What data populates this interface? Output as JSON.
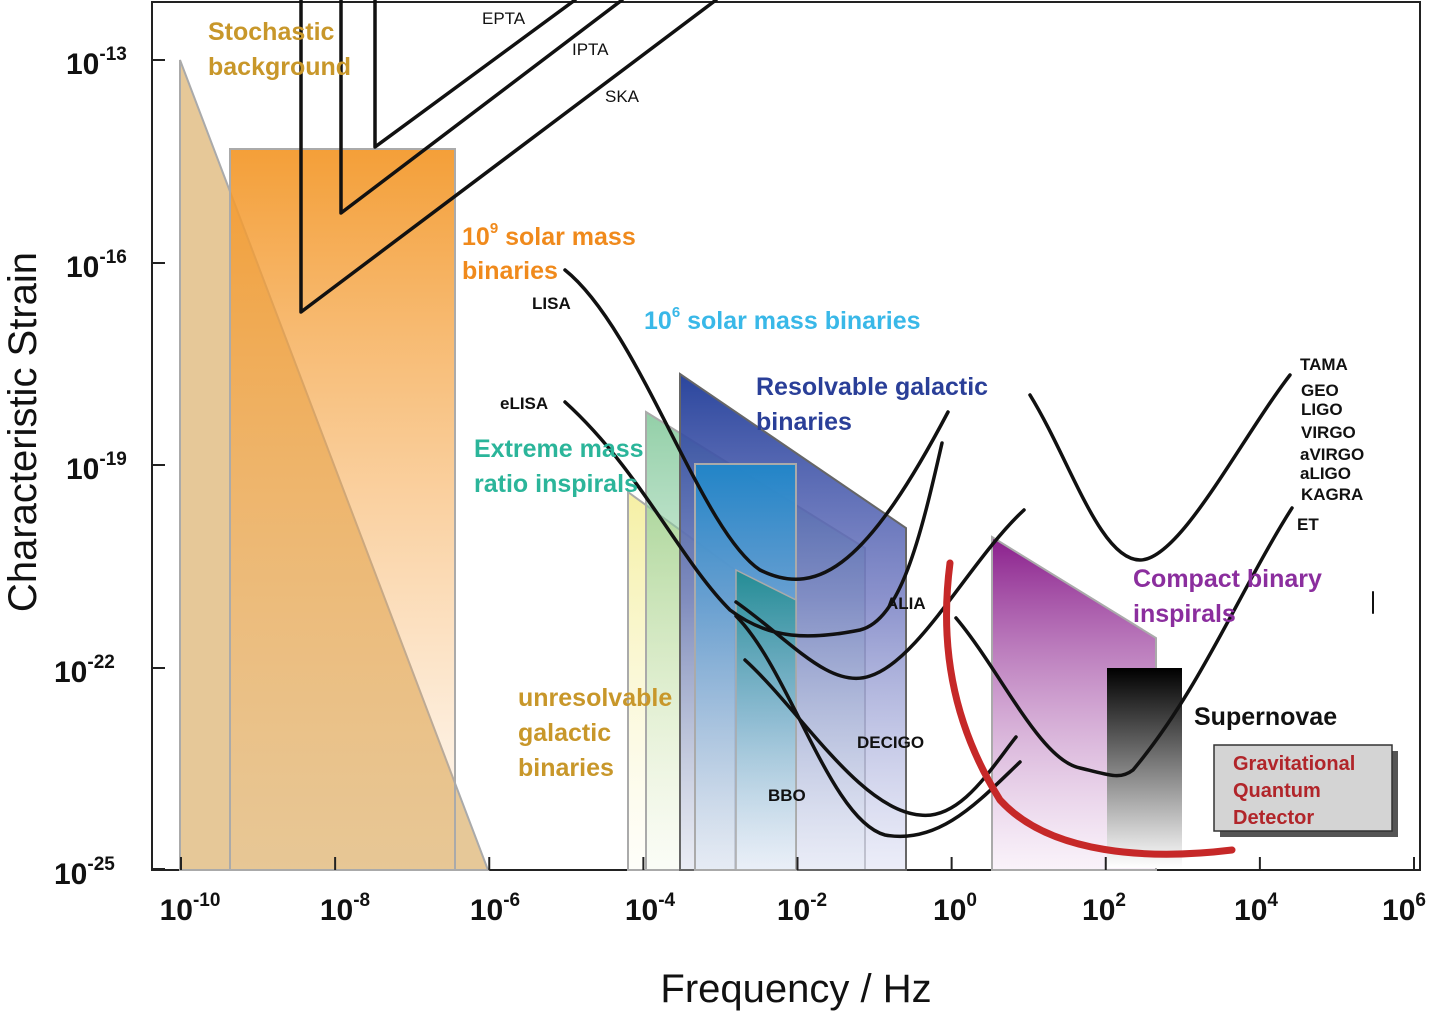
{
  "chart_data": {
    "type": "area",
    "xlabel": "Frequency / Hz",
    "ylabel": "Characteristic Strain",
    "x_scale": "log",
    "y_scale": "log",
    "xlim": [
      1e-11,
      1000000.0
    ],
    "ylim": [
      1e-25,
      1e-13
    ],
    "x_ticks": [
      {
        "base": "10",
        "exp": "-10",
        "value": -10
      },
      {
        "base": "10",
        "exp": "-8",
        "value": -8
      },
      {
        "base": "10",
        "exp": "-6",
        "value": -6
      },
      {
        "base": "10",
        "exp": "-4",
        "value": -4
      },
      {
        "base": "10",
        "exp": "-2",
        "value": -2
      },
      {
        "base": "10",
        "exp": "0",
        "value": 0
      },
      {
        "base": "10",
        "exp": "2",
        "value": 2
      },
      {
        "base": "10",
        "exp": "4",
        "value": 4
      },
      {
        "base": "10",
        "exp": "6",
        "value": 6
      }
    ],
    "y_ticks": [
      {
        "base": "10",
        "exp": "-13",
        "value": -13
      },
      {
        "base": "10",
        "exp": "-16",
        "value": -16
      },
      {
        "base": "10",
        "exp": "-19",
        "value": -19
      },
      {
        "base": "10",
        "exp": "-22",
        "value": -22
      },
      {
        "base": "10",
        "exp": "-25",
        "value": -25
      }
    ],
    "source_regions": [
      {
        "label": "Stochastic background",
        "color": "#c8972a",
        "log_f": [
          -10,
          -6.1
        ],
        "log_h_top": [
          -13,
          -25
        ]
      },
      {
        "label": "10^9 solar mass binaries",
        "color": "#f08a1c",
        "log_f": [
          -9.3,
          -6.5
        ],
        "log_h_top": [
          -14.3,
          -14.3
        ]
      },
      {
        "label": "unresolvable galactic binaries",
        "color": "#e8e07a",
        "log_f": [
          -4.2,
          -2.0
        ],
        "log_h_top": [
          -19.4,
          -21.5
        ]
      },
      {
        "label": "Extreme mass ratio inspirals",
        "color": "#2bb59a",
        "log_f": [
          -4.0,
          -0.8
        ],
        "log_h_top": [
          -18.7,
          -20.2
        ]
      },
      {
        "label": "10^6 solar mass binaries",
        "color": "#1aa0e0",
        "log_f": [
          -3.2,
          -2.0
        ],
        "log_h_top": [
          -19.0,
          -19.0
        ]
      },
      {
        "label": "Resolvable galactic binaries",
        "color": "#2a3f98",
        "log_f": [
          -3.5,
          -0.5
        ],
        "log_h_top": [
          -18.3,
          -19.9
        ]
      },
      {
        "label": "Compact binary inspirals",
        "color": "#8b1e8e",
        "log_f": [
          0.5,
          2.8
        ],
        "log_h_top": [
          -20.0,
          -22.0
        ]
      },
      {
        "label": "Supernovae",
        "color": "#111111",
        "log_f": [
          2.0,
          3.0
        ],
        "log_h_top": [
          -22,
          -22
        ]
      }
    ],
    "detector_curves": [
      {
        "label": "EPTA",
        "log_f": [
          -7.6,
          -7.6,
          -4.0
        ],
        "log_h": [
          -11.8,
          -14.3,
          -11.8
        ]
      },
      {
        "label": "IPTA",
        "log_f": [
          -8.1,
          -8.1,
          -4.1
        ],
        "log_h": [
          -11.8,
          -15.2,
          -11.8
        ]
      },
      {
        "label": "SKA",
        "log_f": [
          -8.6,
          -8.6,
          -3.5
        ],
        "log_h": [
          -11.8,
          -16.7,
          -11.8
        ]
      },
      {
        "label": "LISA",
        "log_f": [
          -5.0,
          -3.4,
          -2.0,
          -0.5,
          0.0
        ],
        "log_h": [
          -16.1,
          -19.2,
          -20.8,
          -20.1,
          -18.8
        ]
      },
      {
        "label": "eLISA",
        "log_f": [
          -5.0,
          -3.0,
          -1.9,
          -0.8,
          0.0
        ],
        "log_h": [
          -18.9,
          -20.6,
          -21.4,
          -22.2,
          -19.2
        ]
      },
      {
        "label": "ALIA",
        "log_f": [
          -2.2,
          -1.0,
          0.0,
          1.0
        ],
        "log_h": [
          -21.0,
          -22.4,
          -22.6,
          -19.6
        ]
      },
      {
        "label": "DECIGO",
        "log_f": [
          -2.2,
          -1.0,
          0.0,
          1.0
        ],
        "log_h": [
          -21.5,
          -23.5,
          -24.0,
          -23.0
        ]
      },
      {
        "label": "BBO",
        "log_f": [
          -2.2,
          -1.0,
          -0.2,
          1.0
        ],
        "log_h": [
          -21.7,
          -23.8,
          -24.4,
          -23.4
        ]
      },
      {
        "label": "TAMA / GEO / LIGO / VIRGO / aVIRGO / aLIGO / KAGRA",
        "log_f": [
          1.0,
          2.0,
          2.5,
          3.5,
          4.4
        ],
        "log_h": [
          -18.5,
          -20.9,
          -21.3,
          -20.1,
          -18.1
        ]
      },
      {
        "label": "ET",
        "log_f": [
          0.1,
          1.0,
          2.0,
          2.3,
          3.5,
          4.4
        ],
        "log_h": [
          -21.2,
          -22.8,
          -23.5,
          -23.6,
          -21.8,
          -19.6
        ]
      },
      {
        "label": "Gravitational Quantum Detector",
        "log_f": [
          -0.03,
          0.5,
          1.5,
          2.5,
          3.7
        ],
        "log_h": [
          -20.4,
          -23.3,
          -24.6,
          -24.8,
          -24.7
        ]
      }
    ],
    "detector_labels": [
      "EPTA",
      "IPTA",
      "SKA",
      "LISA",
      "eLISA",
      "ALIA",
      "DECIGO",
      "BBO",
      "TAMA",
      "GEO",
      "LIGO",
      "VIRGO",
      "aVIRGO",
      "aLIGO",
      "KAGRA",
      "ET"
    ],
    "source_labels": {
      "stochastic": "Stochastic background",
      "solar9_base": "10",
      "solar9_exp": "9",
      "solar9_rest": " solar mass",
      "solar9_line2": "binaries",
      "solar6_base": "10",
      "solar6_exp": "6",
      "solar6_rest": " solar mass binaries",
      "resolvable": "Resolvable galactic binaries",
      "emri": "Extreme mass ratio inspirals",
      "unresolvable": "unresolvable galactic binaries",
      "compact": "Compact binary inspirals",
      "supernovae": "Supernovae",
      "gqd": "Gravitational Quantum Detector"
    },
    "colors": {
      "stochastic": "#c8972a",
      "solar9": "#f08a1c",
      "solar6": "#39b8e8",
      "resolvable": "#2a3f98",
      "emri": "#2bb59a",
      "unresolvable": "#c8972a",
      "compact": "#8b2e9e",
      "gqd_text": "#b1252a",
      "gqd_curve": "#c62828",
      "gqd_box": "#d4d4d4"
    }
  }
}
